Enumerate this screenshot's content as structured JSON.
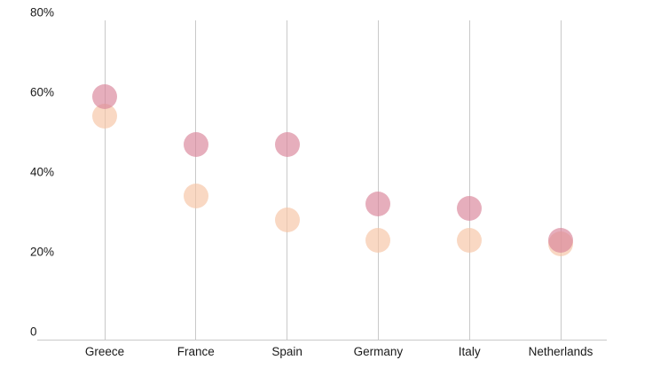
{
  "chart_data": {
    "type": "scatter",
    "title": "",
    "categories": [
      "Greece",
      "France",
      "Spain",
      "Germany",
      "Italy",
      "Netherlands"
    ],
    "series": [
      {
        "name": "series-pink",
        "color": "#d9849a",
        "opacity": 0.66,
        "values": [
          61,
          49,
          49,
          34,
          33,
          25
        ]
      },
      {
        "name": "series-peach",
        "color": "#f6c4a4",
        "opacity": 0.66,
        "values": [
          56,
          36,
          30,
          25,
          25,
          24
        ]
      }
    ],
    "y_axis": {
      "ticks": [
        {
          "label": "80%",
          "value": 80
        },
        {
          "label": "60%",
          "value": 60
        },
        {
          "label": "40%",
          "value": 40
        },
        {
          "label": "20%",
          "value": 20
        },
        {
          "label": "0",
          "value": 0
        }
      ],
      "ylim": [
        0,
        80
      ]
    },
    "grid": "vertical-only",
    "legend": "none",
    "colors": {
      "gridline": "#c9c9c9",
      "axis": "#c9c9c9",
      "text": "#1a1a1a"
    }
  }
}
